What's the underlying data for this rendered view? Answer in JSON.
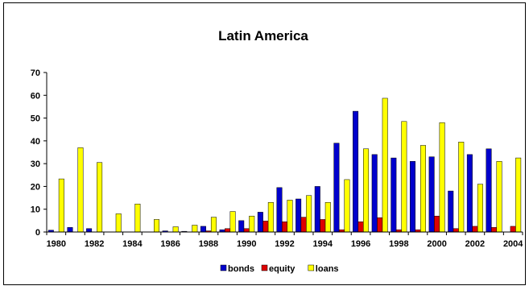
{
  "chart_data": {
    "type": "bar",
    "title": "Latin America",
    "xlabel": "",
    "ylabel": "",
    "ylim": [
      0,
      70
    ],
    "yticks": [
      0,
      10,
      20,
      30,
      40,
      50,
      60,
      70
    ],
    "grid": false,
    "legend_position": "bottom",
    "categories": [
      "1980",
      "1981",
      "1982",
      "1983",
      "1984",
      "1985",
      "1986",
      "1987",
      "1988",
      "1989",
      "1990",
      "1991",
      "1992",
      "1993",
      "1994",
      "1995",
      "1996",
      "1997",
      "1998",
      "1999",
      "2000",
      "2001",
      "2002",
      "2003",
      "2004"
    ],
    "xtick_labels": [
      "1980",
      "1982",
      "1984",
      "1986",
      "1988",
      "1990",
      "1992",
      "1994",
      "1996",
      "1998",
      "2000",
      "2002",
      "2004"
    ],
    "series": [
      {
        "name": "bonds",
        "color": "#0000cc",
        "values": [
          0.8,
          2,
          1.5,
          0,
          0,
          0,
          0.5,
          0.3,
          2.5,
          1,
          5,
          8.7,
          19.5,
          14.5,
          20,
          39,
          53,
          34,
          32.5,
          31,
          33,
          18,
          34,
          36.5,
          0
        ]
      },
      {
        "name": "equity",
        "color": "#dd0000",
        "values": [
          0,
          0,
          0,
          0,
          0,
          0,
          0,
          0,
          0.5,
          1.5,
          1.5,
          4.8,
          4.5,
          6.5,
          5.5,
          1,
          4.5,
          6.3,
          1,
          1,
          7,
          1.5,
          2.5,
          2,
          2.5
        ]
      },
      {
        "name": "loans",
        "color": "#ffff00",
        "values": [
          23.3,
          37,
          30.5,
          8,
          12.3,
          5.5,
          2.3,
          3,
          6.5,
          9,
          7,
          13,
          14,
          16,
          13,
          23,
          36.5,
          58.7,
          48.5,
          38,
          48,
          39.5,
          21,
          31,
          32.5
        ]
      }
    ]
  }
}
